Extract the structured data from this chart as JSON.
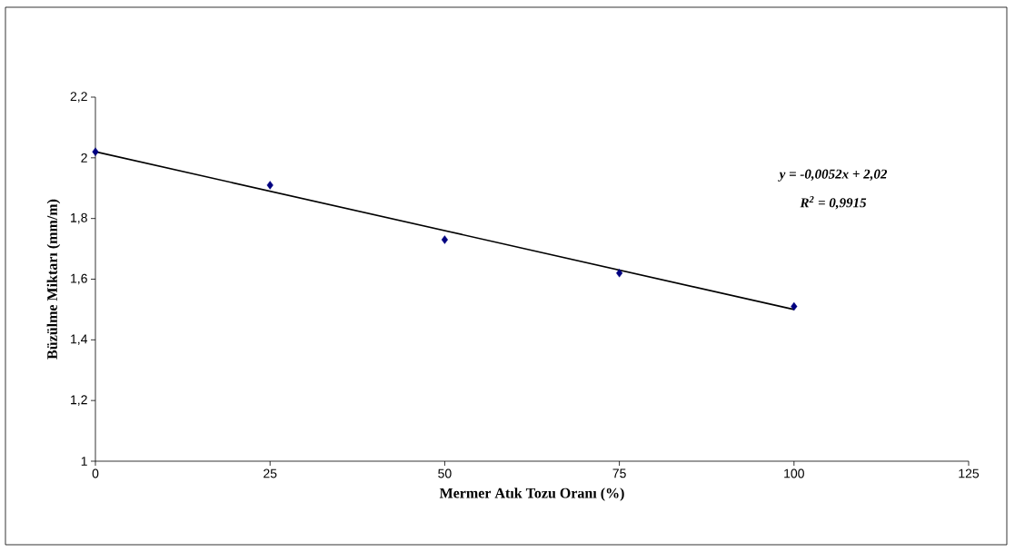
{
  "chart_data": {
    "type": "scatter",
    "xlabel": "Mermer Atık Tozu Oranı (%)",
    "ylabel": "Büzülme Miktarı (mm/m)",
    "annotations": [
      "y = -0,0052x + 2,02",
      "R$^{2}$ = 0,9915"
    ],
    "x": [
      0,
      25,
      50,
      75,
      100
    ],
    "series": [
      {
        "color": "#000080",
        "values": [
          2.02,
          1.91,
          1.73,
          1.62,
          1.51
        ]
      },
      {
        "type": "line",
        "color": "#000000",
        "x": [
          0,
          100
        ],
        "values": [
          2.02,
          1.5
        ],
        "marker": "none"
      }
    ],
    "marker": "diamond",
    "xlim": [
      0,
      125
    ],
    "xticks": [
      0,
      25,
      50,
      75,
      100,
      125
    ],
    "ylim": [
      1,
      2.2
    ],
    "yticks": [
      1,
      {
        "value": 1.2,
        "label": "1,2"
      },
      {
        "value": 1.4,
        "label": "1,4"
      },
      {
        "value": 1.6,
        "label": "1,6"
      },
      {
        "value": 1.8,
        "label": "1,8"
      },
      2,
      {
        "value": 2.2,
        "label": "2,2"
      }
    ]
  }
}
